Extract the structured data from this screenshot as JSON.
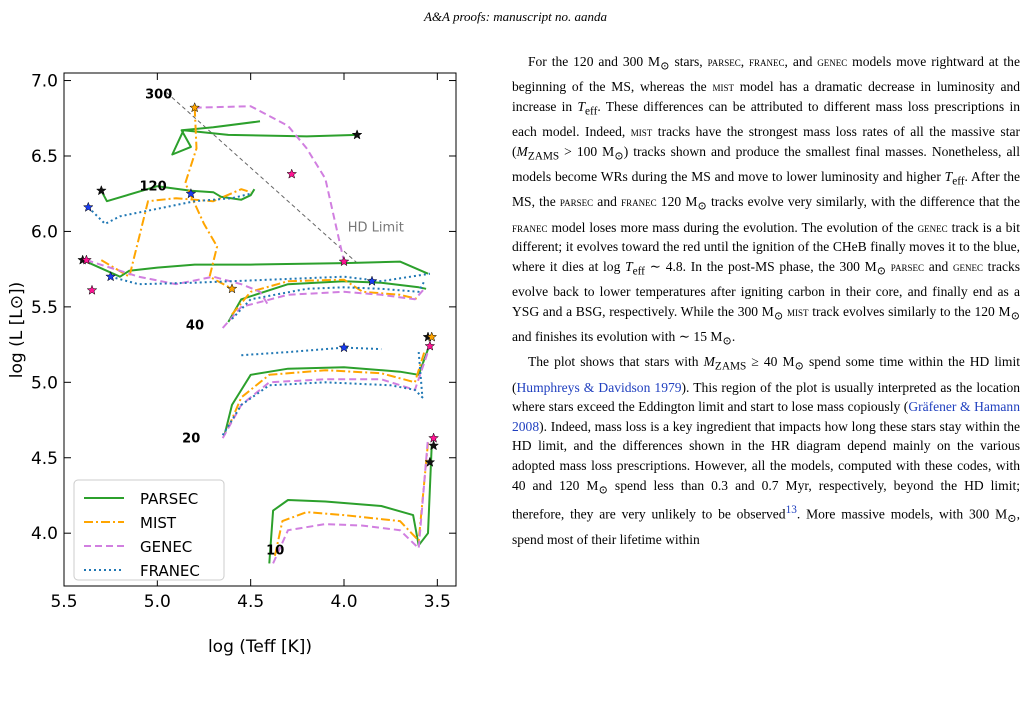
{
  "header": {
    "text": "A&A proofs: manuscript no. aanda"
  },
  "figure": {
    "ylabel": "log (L [L⊙])",
    "xlabel": "log (Teff [K])",
    "x_ticks": [
      "5.5",
      "5.0",
      "4.5",
      "4.0",
      "3.5"
    ],
    "y_ticks": [
      "7.0",
      "6.5",
      "6.0",
      "5.5",
      "5.0",
      "4.5",
      "4.0"
    ],
    "mass_labels": [
      "300",
      "120",
      "40",
      "20",
      "10"
    ],
    "hd_limit_label": "HD Limit",
    "legend": [
      {
        "name": "PARSEC",
        "color": "#2ca02c",
        "style": "solid"
      },
      {
        "name": "MIST",
        "color": "#ffa500",
        "style": "dashdot"
      },
      {
        "name": "GENEC",
        "color": "#d17fe0",
        "style": "dashed"
      },
      {
        "name": "FRANEC",
        "color": "#1f77b4",
        "style": "dotted"
      }
    ]
  },
  "chart_data": {
    "type": "line",
    "xlabel": "log (Teff [K])",
    "ylabel": "log (L [L⊙])",
    "xlim": [
      5.5,
      3.4
    ],
    "ylim": [
      3.65,
      7.05
    ],
    "x_inverted": true,
    "legend_position": "lower-left",
    "annotations": [
      "300",
      "120",
      "40",
      "20",
      "10",
      "HD Limit"
    ],
    "hd_limit_line": {
      "x": [
        4.95,
        3.92
      ],
      "y": [
        6.92,
        5.78
      ]
    },
    "series": [
      {
        "name": "PARSEC",
        "color": "#2ca02c",
        "tracks": [
          {
            "mass": "300",
            "x": [
              4.45,
              4.7,
              4.87,
              4.82,
              4.92,
              4.86,
              4.62,
              4.2,
              3.93
            ],
            "y": [
              6.73,
              6.69,
              6.67,
              6.56,
              6.51,
              6.67,
              6.64,
              6.63,
              6.64
            ]
          },
          {
            "mass": "120",
            "x": [
              5.3,
              5.27,
              5.0,
              4.82,
              4.7,
              4.66,
              4.55,
              4.5,
              4.48
            ],
            "y": [
              6.27,
              6.2,
              6.3,
              6.27,
              6.26,
              6.23,
              6.21,
              6.24,
              6.28
            ]
          },
          {
            "mass": "120-post",
            "x": [
              5.4,
              5.2,
              5.15,
              5.0,
              4.8,
              4.5,
              4.0,
              3.7,
              3.55
            ],
            "y": [
              5.81,
              5.7,
              5.74,
              5.76,
              5.78,
              5.78,
              5.79,
              5.8,
              5.72
            ]
          },
          {
            "mass": "40",
            "x": [
              4.62,
              4.55,
              4.3,
              4.0,
              3.8,
              3.6,
              3.56
            ],
            "y": [
              5.4,
              5.55,
              5.65,
              5.67,
              5.66,
              5.63,
              5.62
            ]
          },
          {
            "mass": "20",
            "x": [
              4.64,
              4.6,
              4.5,
              4.3,
              4.0,
              3.7,
              3.6,
              3.55
            ],
            "y": [
              4.65,
              4.85,
              5.05,
              5.09,
              5.1,
              5.07,
              5.05,
              5.22
            ]
          },
          {
            "mass": "10",
            "x": [
              4.4,
              4.38,
              4.3,
              4.1,
              3.8,
              3.63,
              3.6,
              3.55,
              3.53
            ],
            "y": [
              3.8,
              4.15,
              4.22,
              4.21,
              4.18,
              4.12,
              3.92,
              4.0,
              4.58
            ]
          }
        ]
      },
      {
        "name": "MIST",
        "color": "#ffa500",
        "tracks": [
          {
            "mass": "300",
            "x": [
              4.8,
              4.79,
              4.85,
              4.75,
              4.68,
              4.72,
              4.6
            ],
            "y": [
              6.82,
              6.55,
              6.32,
              6.05,
              5.9,
              5.7,
              5.62
            ]
          },
          {
            "mass": "120",
            "x": [
              5.3,
              5.15,
              5.1,
              5.05,
              4.9,
              4.7,
              4.55,
              4.5
            ],
            "y": [
              5.81,
              5.7,
              5.95,
              6.2,
              6.22,
              6.2,
              6.28,
              6.26
            ]
          },
          {
            "mass": "40",
            "x": [
              4.6,
              4.5,
              4.3,
              4.0,
              3.9,
              3.7,
              3.6
            ],
            "y": [
              5.45,
              5.6,
              5.67,
              5.68,
              5.6,
              5.58,
              5.55
            ]
          },
          {
            "mass": "20",
            "x": [
              4.62,
              4.55,
              4.4,
              4.1,
              3.8,
              3.62,
              3.57
            ],
            "y": [
              4.7,
              4.9,
              5.05,
              5.08,
              5.06,
              5.0,
              5.2
            ]
          },
          {
            "mass": "10",
            "x": [
              4.37,
              4.33,
              4.2,
              4.0,
              3.7,
              3.6,
              3.55
            ],
            "y": [
              3.85,
              4.08,
              4.14,
              4.12,
              4.08,
              3.95,
              4.6
            ]
          }
        ]
      },
      {
        "name": "GENEC",
        "color": "#d17fe0",
        "tracks": [
          {
            "mass": "300",
            "x": [
              4.8,
              4.5,
              4.3,
              4.2,
              4.15,
              4.1,
              4.0
            ],
            "y": [
              6.82,
              6.83,
              6.7,
              6.55,
              6.45,
              6.35,
              5.8
            ]
          },
          {
            "mass": "120",
            "x": [
              5.38,
              5.1,
              4.9,
              4.7,
              4.55,
              4.45,
              4.4
            ],
            "y": [
              5.81,
              5.7,
              5.65,
              5.7,
              5.65,
              5.6,
              5.5
            ]
          },
          {
            "mass": "40",
            "x": [
              4.65,
              4.55,
              4.3,
              4.0,
              3.8,
              3.62,
              3.57
            ],
            "y": [
              5.36,
              5.5,
              5.58,
              5.6,
              5.58,
              5.55,
              5.62
            ]
          },
          {
            "mass": "20",
            "x": [
              4.65,
              4.55,
              4.4,
              4.1,
              3.8,
              3.62,
              3.54
            ],
            "y": [
              4.63,
              4.85,
              5.0,
              5.02,
              5.02,
              4.95,
              5.24
            ]
          },
          {
            "mass": "10",
            "x": [
              4.38,
              4.3,
              4.1,
              3.9,
              3.7,
              3.6,
              3.55
            ],
            "y": [
              3.8,
              4.02,
              4.06,
              4.05,
              4.02,
              3.9,
              4.63
            ]
          }
        ]
      },
      {
        "name": "FRANEC",
        "color": "#1f77b4",
        "tracks": [
          {
            "mass": "120",
            "x": [
              5.37,
              5.28,
              5.2,
              5.0,
              4.8,
              4.6,
              4.5
            ],
            "y": [
              6.16,
              6.05,
              6.1,
              6.15,
              6.2,
              6.22,
              6.25
            ]
          },
          {
            "mass": "120-post",
            "x": [
              5.25,
              5.1,
              4.8,
              4.4,
              4.0,
              3.8,
              3.54
            ],
            "y": [
              5.7,
              5.65,
              5.66,
              5.68,
              5.7,
              5.67,
              5.72
            ]
          },
          {
            "mass": "40",
            "x": [
              4.6,
              4.5,
              4.2,
              4.0,
              3.8,
              3.6,
              3.57
            ],
            "y": [
              5.42,
              5.55,
              5.62,
              5.63,
              5.62,
              5.6,
              5.67
            ]
          },
          {
            "mass": "20",
            "x": [
              4.65,
              4.55,
              4.4,
              4.1,
              3.75,
              3.62,
              3.58,
              3.6
            ],
            "y": [
              4.65,
              4.85,
              4.98,
              5.0,
              4.98,
              4.95,
              4.9,
              5.2
            ]
          },
          {
            "mass": "20-post",
            "x": [
              4.55,
              4.3,
              4.0,
              3.8
            ],
            "y": [
              5.18,
              5.2,
              5.23,
              5.22
            ]
          }
        ]
      }
    ],
    "end_stars": [
      {
        "series": "PARSEC",
        "x": [
          3.93,
          5.3,
          5.4,
          3.55,
          3.52,
          3.54
        ],
        "y": [
          6.64,
          6.27,
          5.81,
          5.3,
          4.58,
          4.47
        ]
      },
      {
        "series": "MIST",
        "x": [
          4.8,
          4.6,
          3.53
        ],
        "y": [
          6.82,
          5.62,
          5.3
        ]
      },
      {
        "series": "GENEC",
        "x": [
          4.0,
          5.35,
          5.38,
          3.54,
          3.52,
          4.28
        ],
        "y": [
          5.8,
          5.61,
          5.81,
          5.24,
          4.63,
          6.38
        ]
      },
      {
        "series": "FRANEC",
        "x": [
          5.37,
          5.25,
          4.0,
          3.85,
          4.82
        ],
        "y": [
          6.16,
          5.7,
          5.23,
          5.67,
          6.25
        ]
      }
    ]
  },
  "body": {
    "p1": [
      "For the 120 and 300 M",
      "⊙",
      " stars, ",
      "parsec",
      ", ",
      "franec",
      ", and ",
      "genec",
      " models move rightward at the beginning of the MS, whereas the ",
      "mist",
      " model has a dramatic decrease in luminosity and increase in ",
      "T",
      "eff",
      ". These differences can be attributed to different mass loss prescriptions in each model. Indeed, ",
      "mist",
      " tracks have the strongest mass loss rates of all the massive star (",
      "M",
      "ZAMS",
      " > 100 M",
      "⊙",
      ") tracks shown and produce the smallest final masses. Nonetheless, all models become WRs during the MS and move to lower luminosity and higher ",
      "T",
      "eff",
      ". After the MS, the ",
      "parsec",
      " and ",
      "franec",
      " 120 M",
      "⊙",
      " tracks evolve very similarly, with the difference that the ",
      "franec",
      " model loses more mass during the evolution. The evolution of the ",
      "genec",
      " track is a bit different; it evolves toward the red until the ignition of the CHeB finally moves it to the blue, where it dies at log ",
      "T",
      "eff",
      " ∼ 4.8. In the post-MS phase, the 300 M",
      "⊙",
      " ",
      "parsec",
      " and ",
      "genec",
      " tracks evolve back to lower temperatures after igniting carbon in their core, and finally end as a YSG and a BSG, respectively. While the 300 M",
      "⊙",
      " ",
      "mist",
      " track evolves similarly to the 120 M",
      "⊙",
      " and finishes its evolution with ∼ 15 M",
      "⊙",
      "."
    ],
    "p2": [
      "The plot shows that stars with ",
      "M",
      "ZAMS",
      " ≥ 40 M",
      "⊙",
      " spend some time within the HD limit (",
      "Humphreys & Davidson 1979",
      "). This region of the plot is usually interpreted as the location where stars exceed the Eddington limit and start to lose mass copiously (",
      "Gräfener & Hamann 2008",
      "). Indeed, mass loss is a key ingredient that impacts how long these stars stay within the HD limit, and the differences shown in the HR diagram depend mainly on the various adopted mass loss prescriptions. However, all the models, computed with these codes, with 40 and 120 M",
      "⊙",
      " spend less than 0.3 and 0.7 Myr, respectively, beyond the HD limit; therefore, they are very unlikely to be observed",
      "13",
      ". More massive models, with 300 M",
      "⊙",
      ", spend most of their lifetime within"
    ]
  }
}
